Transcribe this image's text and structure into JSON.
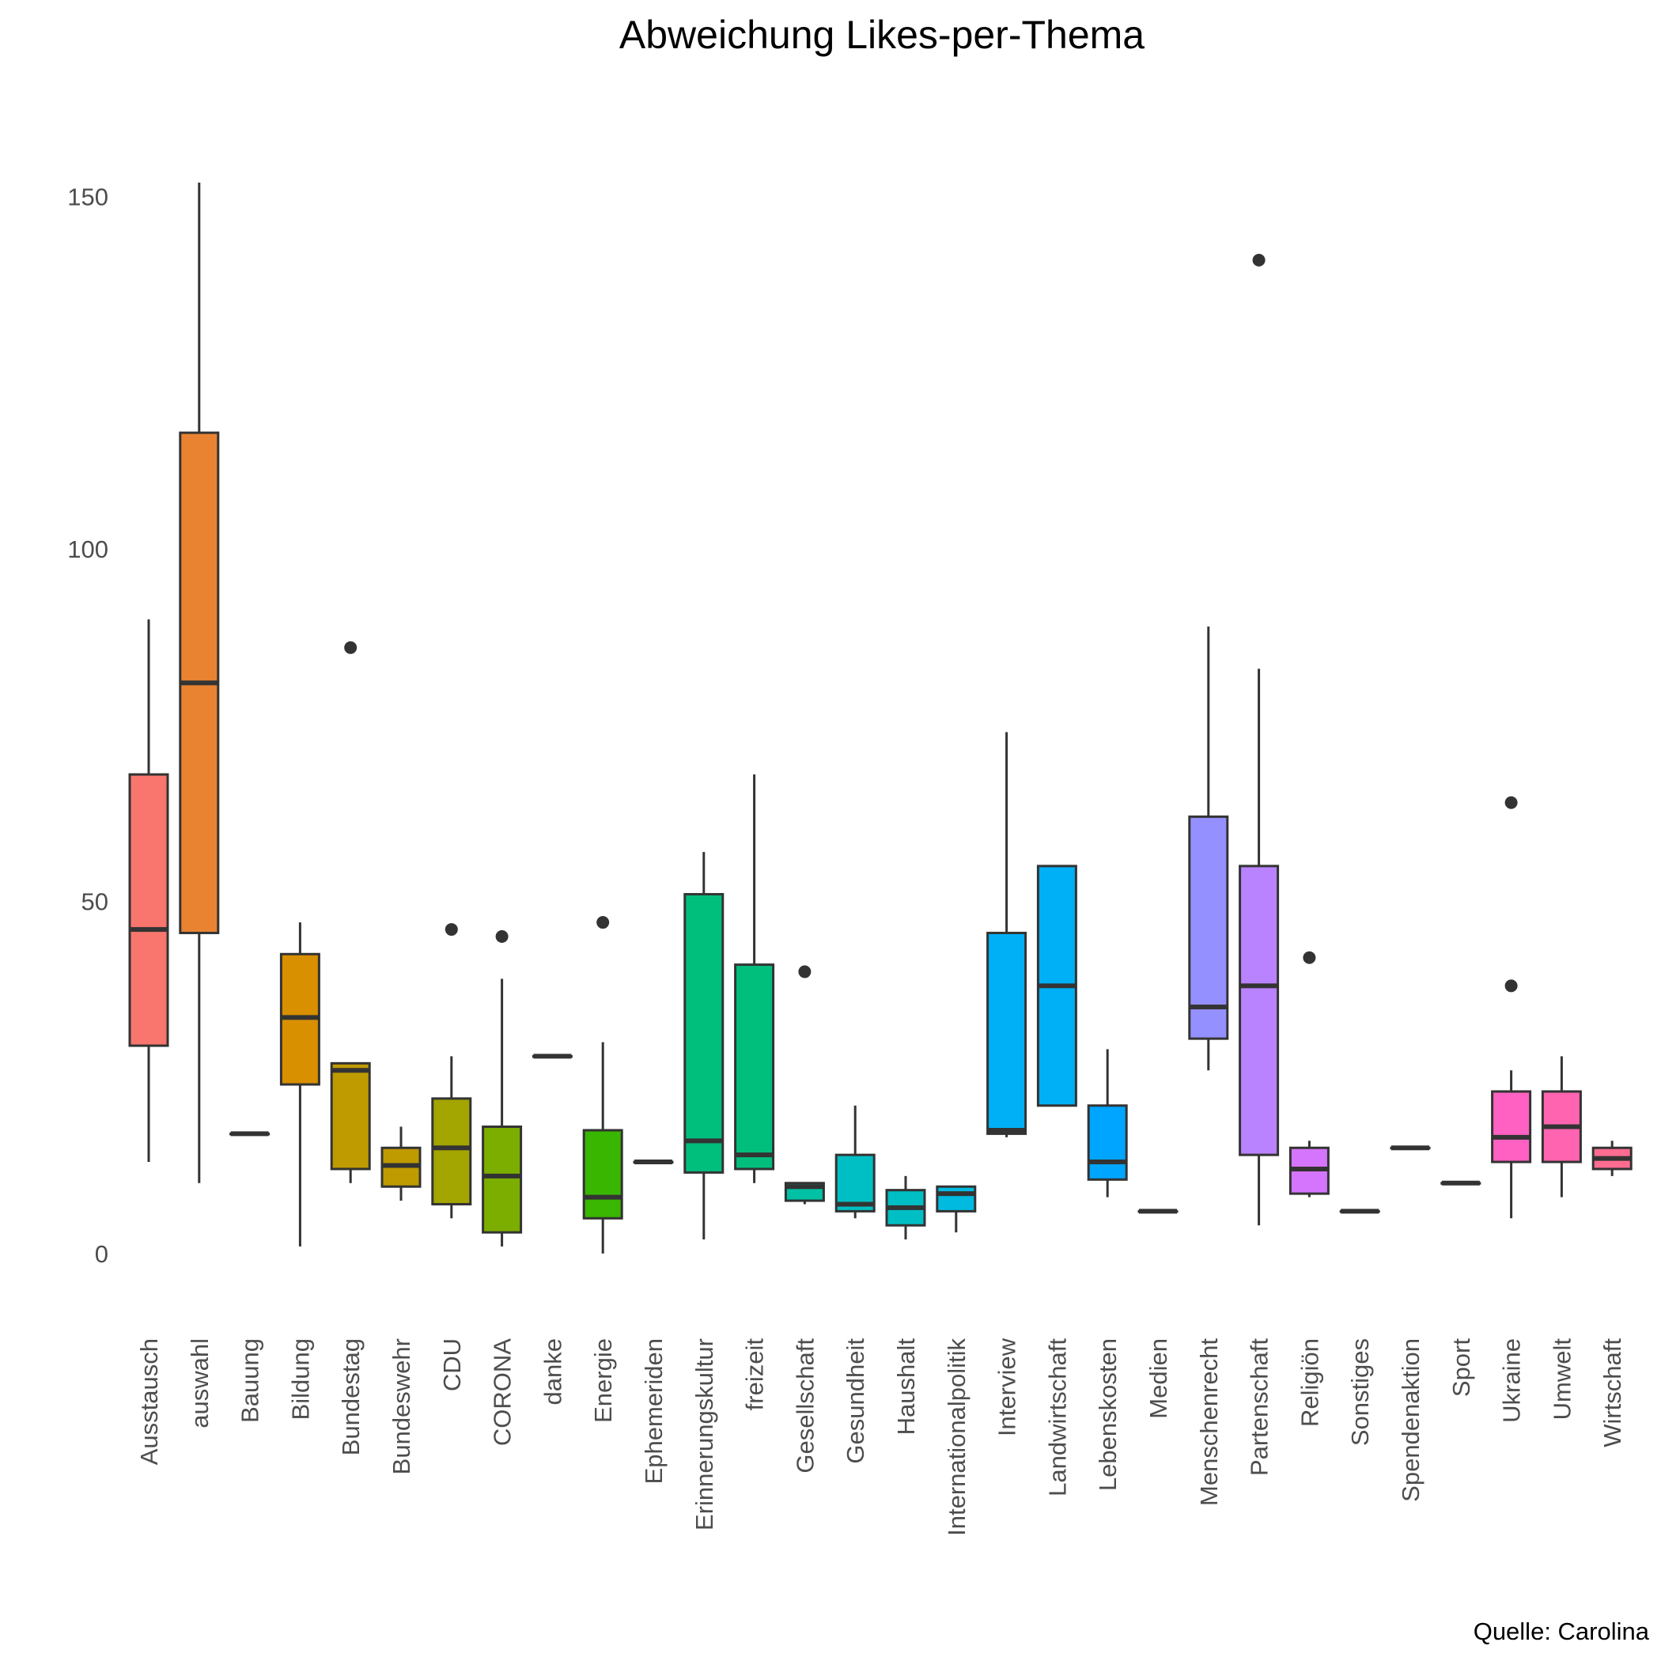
{
  "chart_data": {
    "type": "boxplot",
    "title": "Abweichung Likes-per-Thema",
    "caption": "Quelle: Carolina",
    "xlabel": "",
    "ylabel": "",
    "ylim": [
      -9,
      153
    ],
    "yticks": [
      0,
      50,
      100,
      150
    ],
    "grid": false,
    "legend": "none",
    "categories": [
      "Ausstausch",
      "auswahl",
      "Bauung",
      "Bildung",
      "Bundestag",
      "Bundeswehr",
      "CDU",
      "CORONA",
      "danke",
      "Energie",
      "Ephemeriden",
      "Erinnerungskultur",
      "freizeit",
      "Gesellschaft",
      "Gesundheit",
      "Haushalt",
      "Internationalpolitik",
      "Interview",
      "Landwirtschaft",
      "Lebenskosten",
      "Medien",
      "Menschenrecht",
      "Partenschaft",
      "Religiön",
      "Sonstiges",
      "Spendenaktion",
      "Sport",
      "Ukraine",
      "Umwelt",
      "Wirtschaft"
    ],
    "boxes": [
      {
        "category": "Ausstausch",
        "min": 13,
        "q1": 29.5,
        "median": 46,
        "q3": 68,
        "max": 90,
        "outliers": [],
        "color": "#F8766D"
      },
      {
        "category": "auswahl",
        "min": 10,
        "q1": 45.5,
        "median": 81,
        "q3": 116.5,
        "max": 152,
        "outliers": [],
        "color": "#EA8331"
      },
      {
        "category": "Bauung",
        "min": 17,
        "q1": 17,
        "median": 17,
        "q3": 17,
        "max": 17,
        "outliers": [],
        "color": "#D89000"
      },
      {
        "category": "Bildung",
        "min": 1,
        "q1": 24,
        "median": 33.5,
        "q3": 42.5,
        "max": 47,
        "outliers": [],
        "color": "#D89000"
      },
      {
        "category": "Bundestag",
        "min": 10,
        "q1": 12,
        "median": 26,
        "q3": 27,
        "max": 27,
        "outliers": [
          86
        ],
        "color": "#C09B00"
      },
      {
        "category": "Bundeswehr",
        "min": 7.5,
        "q1": 9.5,
        "median": 12.5,
        "q3": 15,
        "max": 18,
        "outliers": [],
        "color": "#C09B00"
      },
      {
        "category": "CDU",
        "min": 5,
        "q1": 7,
        "median": 15,
        "q3": 22,
        "max": 28,
        "outliers": [
          46
        ],
        "color": "#A3A500"
      },
      {
        "category": "CORONA",
        "min": 1,
        "q1": 3,
        "median": 11,
        "q3": 18,
        "max": 39,
        "outliers": [
          45
        ],
        "color": "#7CAE00"
      },
      {
        "category": "danke",
        "min": 28,
        "q1": 28,
        "median": 28,
        "q3": 28,
        "max": 28,
        "outliers": [],
        "color": "#39B600"
      },
      {
        "category": "Energie",
        "min": 0,
        "q1": 5,
        "median": 8,
        "q3": 17.5,
        "max": 30,
        "outliers": [
          47
        ],
        "color": "#39B600"
      },
      {
        "category": "Ephemeriden",
        "min": 13,
        "q1": 13,
        "median": 13,
        "q3": 13,
        "max": 13,
        "outliers": [],
        "color": "#00BB4E"
      },
      {
        "category": "Erinnerungskultur",
        "min": 2,
        "q1": 11.5,
        "median": 16,
        "q3": 51,
        "max": 57,
        "outliers": [],
        "color": "#00BF7D"
      },
      {
        "category": "freizeit",
        "min": 10,
        "q1": 12,
        "median": 14,
        "q3": 41,
        "max": 68,
        "outliers": [],
        "color": "#00BF7D"
      },
      {
        "category": "Gesellschaft",
        "min": 7,
        "q1": 7.5,
        "median": 9.5,
        "q3": 10,
        "max": 10,
        "outliers": [
          40
        ],
        "color": "#00C1A3"
      },
      {
        "category": "Gesundheit",
        "min": 5,
        "q1": 6,
        "median": 7,
        "q3": 14,
        "max": 21,
        "outliers": [],
        "color": "#00BFC4"
      },
      {
        "category": "Haushalt",
        "min": 2,
        "q1": 4,
        "median": 6.5,
        "q3": 9,
        "max": 11,
        "outliers": [],
        "color": "#00BFC4"
      },
      {
        "category": "Internationalpolitik",
        "min": 3,
        "q1": 6,
        "median": 8.5,
        "q3": 9.5,
        "max": 9.5,
        "outliers": [],
        "color": "#00BAE0"
      },
      {
        "category": "Interview",
        "min": 16.5,
        "q1": 17,
        "median": 17.5,
        "q3": 45.5,
        "max": 74,
        "outliers": [],
        "color": "#00B0F6"
      },
      {
        "category": "Landwirtschaft",
        "min": 21,
        "q1": 21,
        "median": 38,
        "q3": 55,
        "max": 55,
        "outliers": [],
        "color": "#00B0F6"
      },
      {
        "category": "Lebenskosten",
        "min": 8,
        "q1": 10.5,
        "median": 13,
        "q3": 21,
        "max": 29,
        "outliers": [],
        "color": "#00A5FF"
      },
      {
        "category": "Medien",
        "min": 6,
        "q1": 6,
        "median": 6,
        "q3": 6,
        "max": 6,
        "outliers": [],
        "color": "#35A2FF"
      },
      {
        "category": "Menschenrecht",
        "min": 26,
        "q1": 30.5,
        "median": 35,
        "q3": 62,
        "max": 89,
        "outliers": [],
        "color": "#9590FF"
      },
      {
        "category": "Partenschaft",
        "min": 4,
        "q1": 14,
        "median": 38,
        "q3": 55,
        "max": 83,
        "outliers": [
          141
        ],
        "color": "#B983FF"
      },
      {
        "category": "Religiön",
        "min": 8,
        "q1": 8.5,
        "median": 12,
        "q3": 15,
        "max": 16,
        "outliers": [
          42
        ],
        "color": "#D575FE"
      },
      {
        "category": "Sonstiges",
        "min": 6,
        "q1": 6,
        "median": 6,
        "q3": 6,
        "max": 6,
        "outliers": [],
        "color": "#E76BF3"
      },
      {
        "category": "Spendenaktion",
        "min": 15,
        "q1": 15,
        "median": 15,
        "q3": 15,
        "max": 15,
        "outliers": [],
        "color": "#F564E3"
      },
      {
        "category": "Sport",
        "min": 10,
        "q1": 10,
        "median": 10,
        "q3": 10,
        "max": 10,
        "outliers": [],
        "color": "#FA62DB"
      },
      {
        "category": "Ukraine",
        "min": 5,
        "q1": 13,
        "median": 16.5,
        "q3": 23,
        "max": 26,
        "outliers": [
          38,
          64
        ],
        "color": "#FF61C3"
      },
      {
        "category": "Umwelt",
        "min": 8,
        "q1": 13,
        "median": 18,
        "q3": 23,
        "max": 28,
        "outliers": [],
        "color": "#FF64B0"
      },
      {
        "category": "Wirtschaft",
        "min": 11,
        "q1": 12,
        "median": 13.5,
        "q3": 15,
        "max": 16,
        "outliers": [],
        "color": "#FF6C91"
      }
    ]
  }
}
